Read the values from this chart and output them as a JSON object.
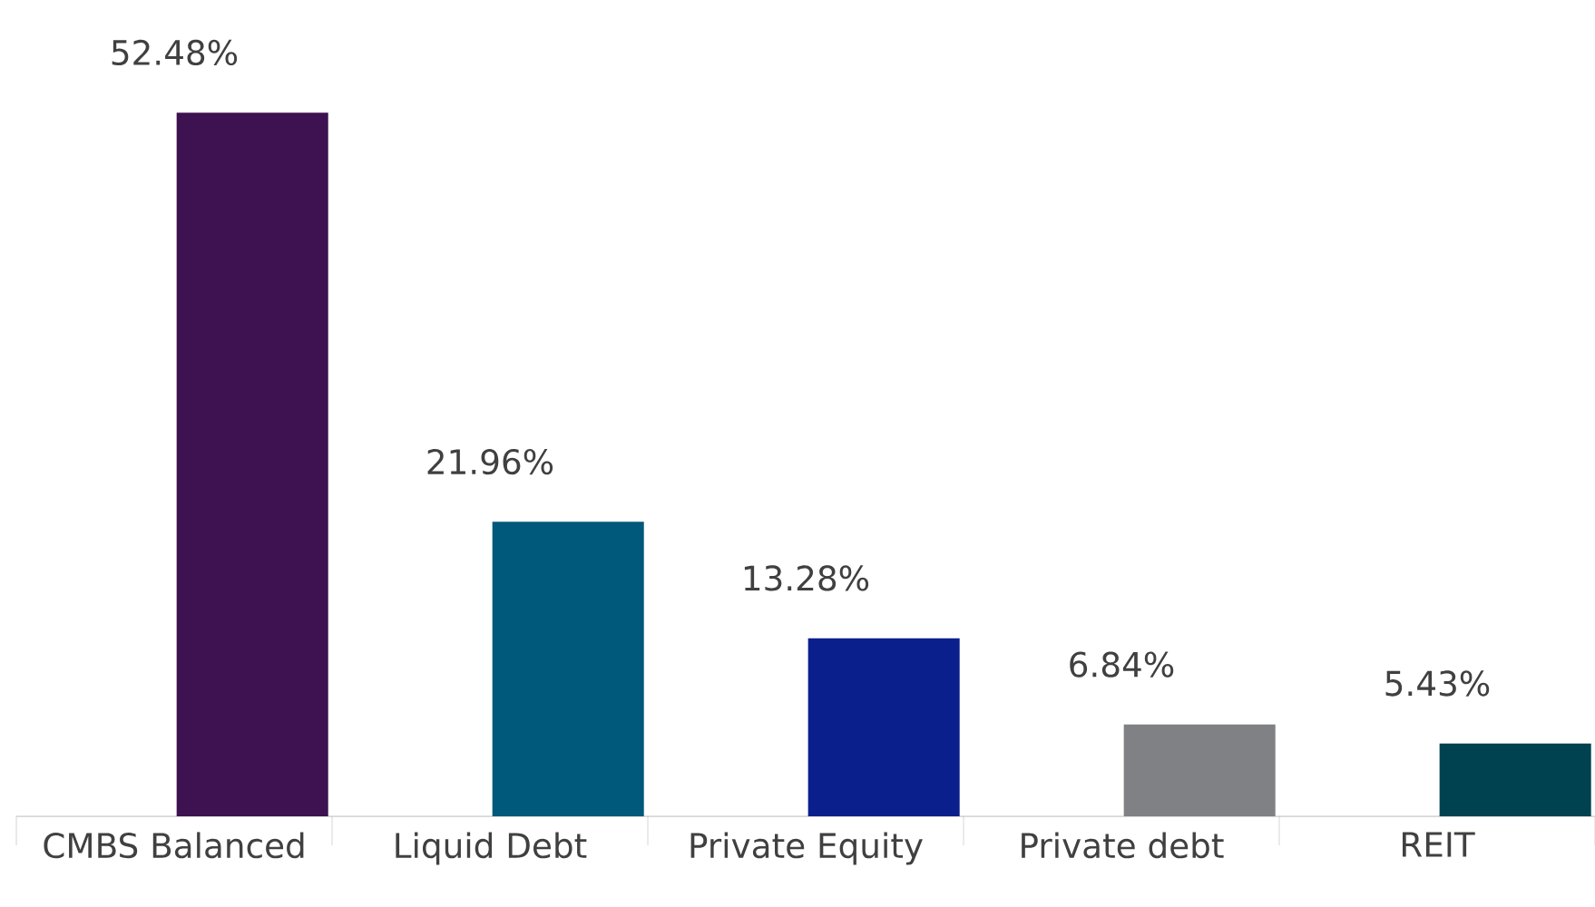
{
  "chart_data": {
    "type": "bar",
    "categories": [
      "CMBS Balanced",
      "Liquid Debt",
      "Private Equity",
      "Private debt",
      "REIT"
    ],
    "values": [
      52.48,
      21.96,
      13.28,
      6.84,
      5.43
    ],
    "colors": [
      "#3e1150",
      "#00587a",
      "#0b1f8c",
      "#808184",
      "#00424f"
    ],
    "value_labels": [
      "52.48%",
      "21.96%",
      "13.28%",
      "6.84%",
      "5.43%"
    ],
    "grid": false
  }
}
